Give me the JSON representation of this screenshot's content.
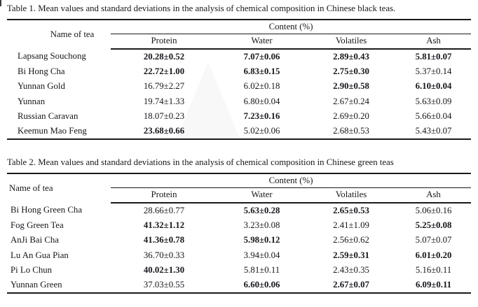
{
  "page": {
    "background": "#ffffff",
    "text_color": "#16161c",
    "rule_color": "#1a1a1a"
  },
  "tables": [
    {
      "title": "Table 1. Mean values and standard deviations in the analysis of chemical composition in Chinese black teas.",
      "header": {
        "name_column": "Name of tea",
        "content_group": "Content (%)",
        "columns": [
          "Protein",
          "Water",
          "Volatiles",
          "Ash"
        ]
      },
      "rows": [
        {
          "name": "Lapsang Souchong",
          "values": [
            "20.28±0.52",
            "7.07±0.06",
            "2.89±0.43",
            "5.81±0.07"
          ],
          "bold": [
            true,
            true,
            true,
            true
          ]
        },
        {
          "name": "Bi Hong Cha",
          "values": [
            "22.72±1.00",
            "6.83±0.15",
            "2.75±0.30",
            "5.37±0.14"
          ],
          "bold": [
            true,
            true,
            true,
            false
          ]
        },
        {
          "name": "Yunnan Gold",
          "values": [
            "16.79±2.27",
            "6.02±0.18",
            "2.90±0.58",
            "6.10±0.04"
          ],
          "bold": [
            false,
            false,
            true,
            true
          ]
        },
        {
          "name": "Yunnan",
          "values": [
            "19.74±1.33",
            "6.80±0.04",
            "2.67±0.24",
            "5.63±0.09"
          ],
          "bold": [
            false,
            false,
            false,
            false
          ]
        },
        {
          "name": "Russian Caravan",
          "values": [
            "18.07±0.23",
            "7.23±0.16",
            "2.69±0.20",
            "5.66±0.04"
          ],
          "bold": [
            false,
            true,
            false,
            false
          ]
        },
        {
          "name": "Keemun Mao Feng",
          "values": [
            "23.68±0.66",
            "5.02±0.06",
            "2.68±0.53",
            "5.43±0.07"
          ],
          "bold": [
            true,
            false,
            false,
            false
          ]
        }
      ]
    },
    {
      "title": "Table 2. Mean values and standard deviations in the analysis of chemical composition in Chinese green teas",
      "header": {
        "name_column": "Name of tea",
        "content_group": "Content (%)",
        "columns": [
          "Protein",
          "Water",
          "Volatiles",
          "Ash"
        ]
      },
      "rows": [
        {
          "name": "Bi Hong Green Cha",
          "values": [
            "28.66±0.77",
            "5.63±0.28",
            "2.65±0.53",
            "5.06±0.16"
          ],
          "bold": [
            false,
            true,
            true,
            false
          ]
        },
        {
          "name": "Fog Green Tea",
          "values": [
            "41.32±1.12",
            "3.23±0.08",
            "2.41±1.09",
            "5.25±0.08"
          ],
          "bold": [
            true,
            false,
            false,
            true
          ]
        },
        {
          "name": "AnJi Bai Cha",
          "values": [
            "41.36±0.78",
            "5.98±0.12",
            "2.56±0.62",
            "5.07±0.07"
          ],
          "bold": [
            true,
            true,
            false,
            false
          ]
        },
        {
          "name": "Lu An Gua Pian",
          "values": [
            "36.70±0.33",
            "3.94±0.04",
            "2.59±0.31",
            "6.01±0.20"
          ],
          "bold": [
            false,
            false,
            true,
            true
          ]
        },
        {
          "name": "Pi Lo Chun",
          "values": [
            "40.02±1.30",
            "5.81±0.11",
            "2.43±0.35",
            "5.16±0.11"
          ],
          "bold": [
            true,
            false,
            false,
            false
          ]
        },
        {
          "name": "Yunnan Green",
          "values": [
            "37.03±0.55",
            "6.60±0.06",
            "2.67±0.07",
            "6.09±0.11"
          ],
          "bold": [
            false,
            true,
            true,
            true
          ]
        }
      ]
    }
  ]
}
